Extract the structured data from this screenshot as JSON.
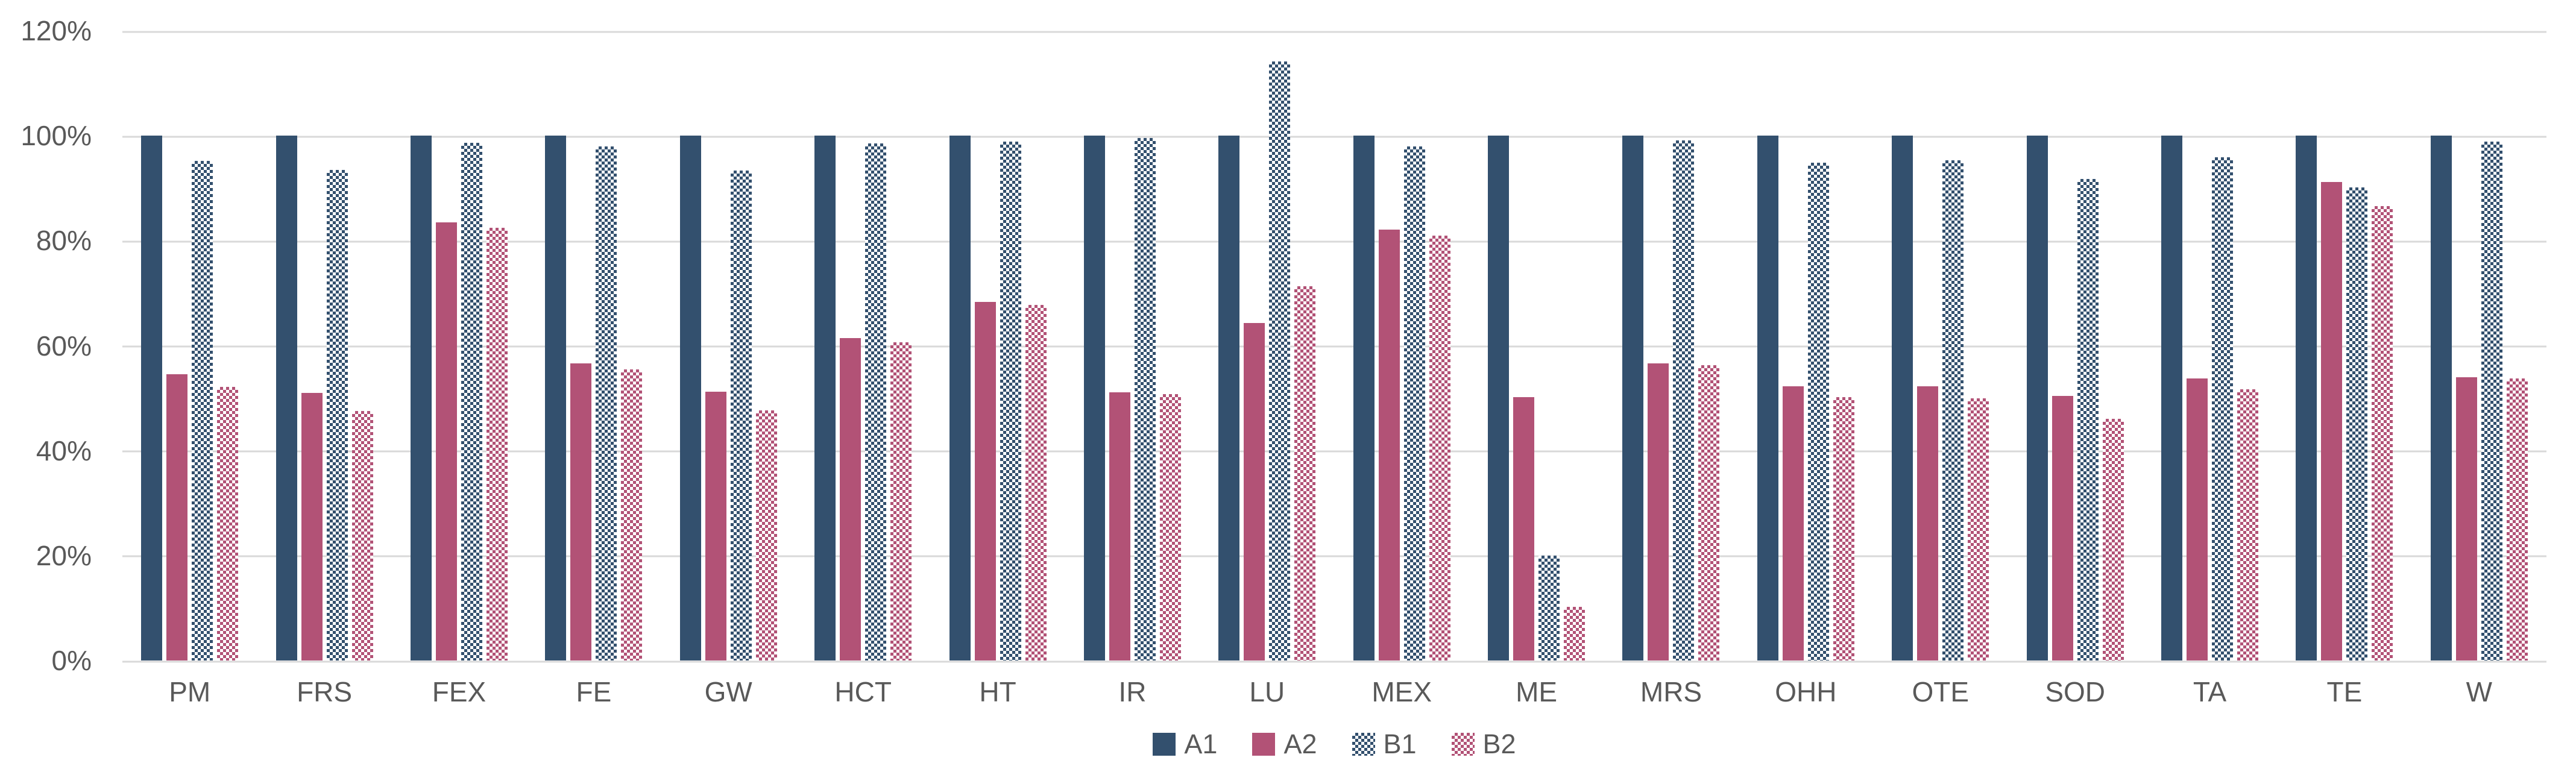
{
  "chart_data": {
    "type": "bar",
    "title": "",
    "xlabel": "",
    "ylabel": "",
    "grid": true,
    "legend_position": "bottom",
    "background_color": "#FFFFFF",
    "gridline_color": "#D9D9D9",
    "text_color": "#595959",
    "y_axis": {
      "min": 0,
      "max": 120,
      "step": 20,
      "tick_labels": [
        "0%",
        "20%",
        "40%",
        "60%",
        "80%",
        "100%",
        "120%"
      ]
    },
    "categories": [
      "PM",
      "FRS",
      "FEX",
      "FE",
      "GW",
      "HCT",
      "HT",
      "IR",
      "LU",
      "MEX",
      "ME",
      "MRS",
      "OHH",
      "OTE",
      "SOD",
      "TA",
      "TE",
      "W"
    ],
    "series": [
      {
        "name": "A1",
        "color": "#33506E",
        "pattern": "solid",
        "values": [
          100,
          100,
          100,
          100,
          100,
          100,
          100,
          100,
          100,
          100,
          100,
          100,
          100,
          100,
          100,
          100,
          100,
          100
        ]
      },
      {
        "name": "A2",
        "color": "#B25276",
        "pattern": "solid",
        "values": [
          54.5,
          51.0,
          83.5,
          56.6,
          51.2,
          61.4,
          68.3,
          51.1,
          64.3,
          82.1,
          50.2,
          56.6,
          52.3,
          52.3,
          50.4,
          53.8,
          91.2,
          54.0
        ]
      },
      {
        "name": "B1",
        "color": "#33506E",
        "pattern": "checker",
        "values": [
          95.2,
          93.5,
          98.6,
          97.9,
          93.4,
          98.5,
          98.9,
          99.6,
          114.2,
          97.9,
          20.0,
          99.1,
          94.9,
          95.3,
          91.7,
          95.9,
          90.2,
          98.9
        ]
      },
      {
        "name": "B2",
        "color": "#B25276",
        "pattern": "checker",
        "values": [
          52.1,
          47.5,
          82.4,
          55.5,
          47.7,
          60.6,
          67.8,
          50.8,
          71.3,
          81.0,
          10.2,
          56.3,
          50.2,
          50.0,
          46.1,
          51.7,
          86.6,
          53.8
        ]
      }
    ]
  }
}
